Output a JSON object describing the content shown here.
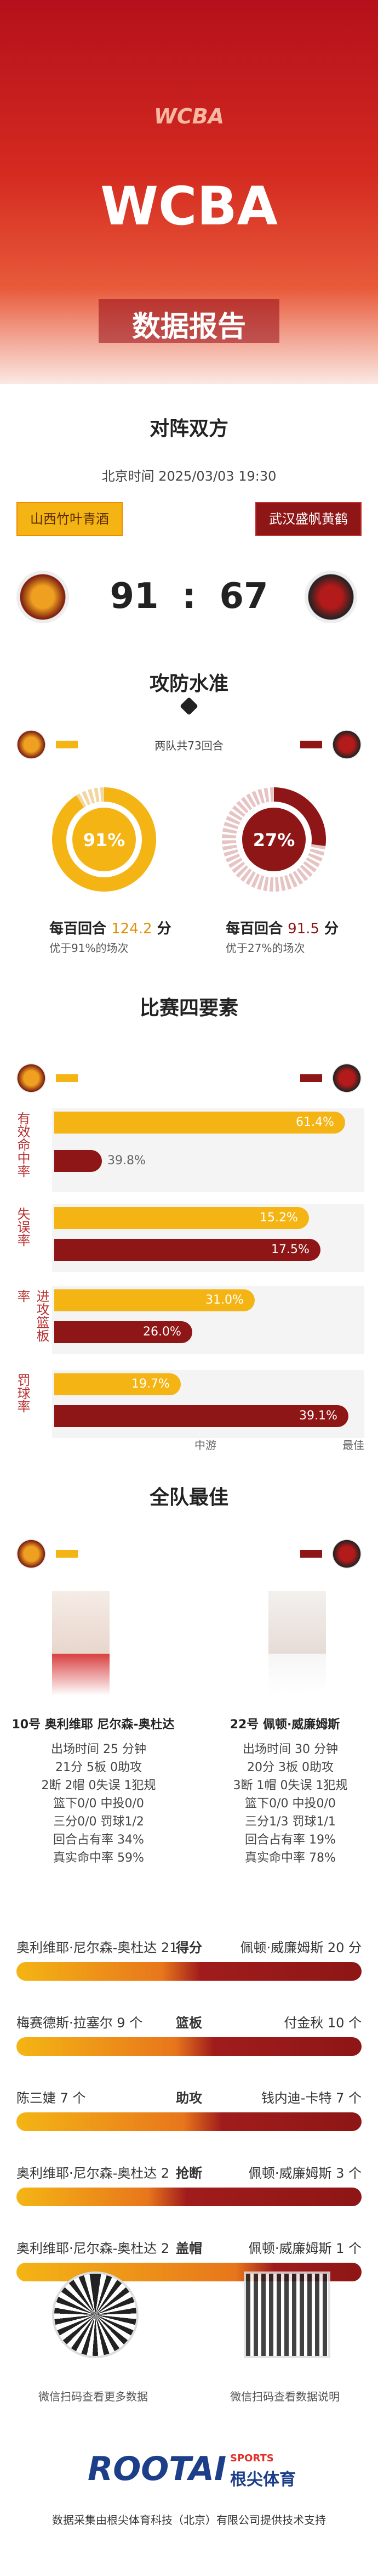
{
  "header": {
    "logo": "WCBA",
    "title": "WCBA",
    "subtitle": "数据报告"
  },
  "matchup": {
    "heading": "对阵双方",
    "time": "北京时间 2025/03/03 19:30",
    "home": "山西竹叶青酒",
    "away": "武汉盛帆黄鹤",
    "home_score": "91",
    "separator": ":",
    "away_score": "67"
  },
  "offense_defense": {
    "heading": "攻防水准",
    "possessions": "两队共73回合",
    "home": {
      "pct": "91%",
      "pts_prefix": "每百回合",
      "pts": "124.2",
      "pts_suffix": "分",
      "note": "优于91%的场次"
    },
    "away": {
      "pct": "27%",
      "pts_prefix": "每百回合",
      "pts": "91.5",
      "pts_suffix": "分",
      "note": "优于27%的场次"
    }
  },
  "four_factors": {
    "heading": "比赛四要素",
    "rows": [
      {
        "label": "有效命中率",
        "home": "61.4%",
        "away": "39.8%"
      },
      {
        "label": "失误率",
        "home": "15.2%",
        "away": "17.5%"
      },
      {
        "label": "进攻篮板率",
        "home": "31.0%",
        "away": "26.0%"
      },
      {
        "label": "罚球率",
        "home": "19.7%",
        "away": "39.1%"
      }
    ],
    "axis": [
      "中游",
      "最佳"
    ]
  },
  "best": {
    "heading": "全队最佳",
    "home": {
      "name": "10号 奥利维耶 尼尔森-奥杜达",
      "stats": [
        "出场时间 25 分钟",
        "21分 5板 0助攻",
        "2断 2帽 0失误 1犯规",
        "篮下0/0 中投0/0",
        "三分0/0 罚球1/2",
        "回合占有率 34%",
        "真实命中率 59%"
      ]
    },
    "away": {
      "name": "22号 佩顿·威廉姆斯",
      "stats": [
        "出场时间 30 分钟",
        "20分 3板 0助攻",
        "3断 1帽 0失误 1犯规",
        "篮下0/0 中投0/0",
        "三分1/3 罚球1/1",
        "回合占有率 19%",
        "真实命中率 78%"
      ]
    }
  },
  "leaders": [
    {
      "label": "得分",
      "home": "奥利维耶·尼尔森-奥杜达 21",
      "away": "佩顿·威廉姆斯 20 分"
    },
    {
      "label": "篮板",
      "home": "梅赛德斯·拉塞尔 9 个",
      "away": "付金秋 10 个"
    },
    {
      "label": "助攻",
      "home": "陈三婕 7 个",
      "away": "钱内迪-卡特 7 个"
    },
    {
      "label": "抢断",
      "home": "奥利维耶·尼尔森-奥杜达 2",
      "away": "佩顿·威廉姆斯 3 个"
    },
    {
      "label": "盖帽",
      "home": "奥利维耶·尼尔森-奥杜达 2",
      "away": "佩顿·威廉姆斯 1 个"
    }
  ],
  "footer": {
    "qr_left": "微信扫码查看更多数据",
    "qr_right": "微信扫码查看数据说明",
    "brand": "ROOTAI",
    "brand_sports": "SPORTS",
    "brand_cn": "根尖体育",
    "credit": "数据采集由根尖体育科技（北京）有限公司提供技术支持"
  }
}
